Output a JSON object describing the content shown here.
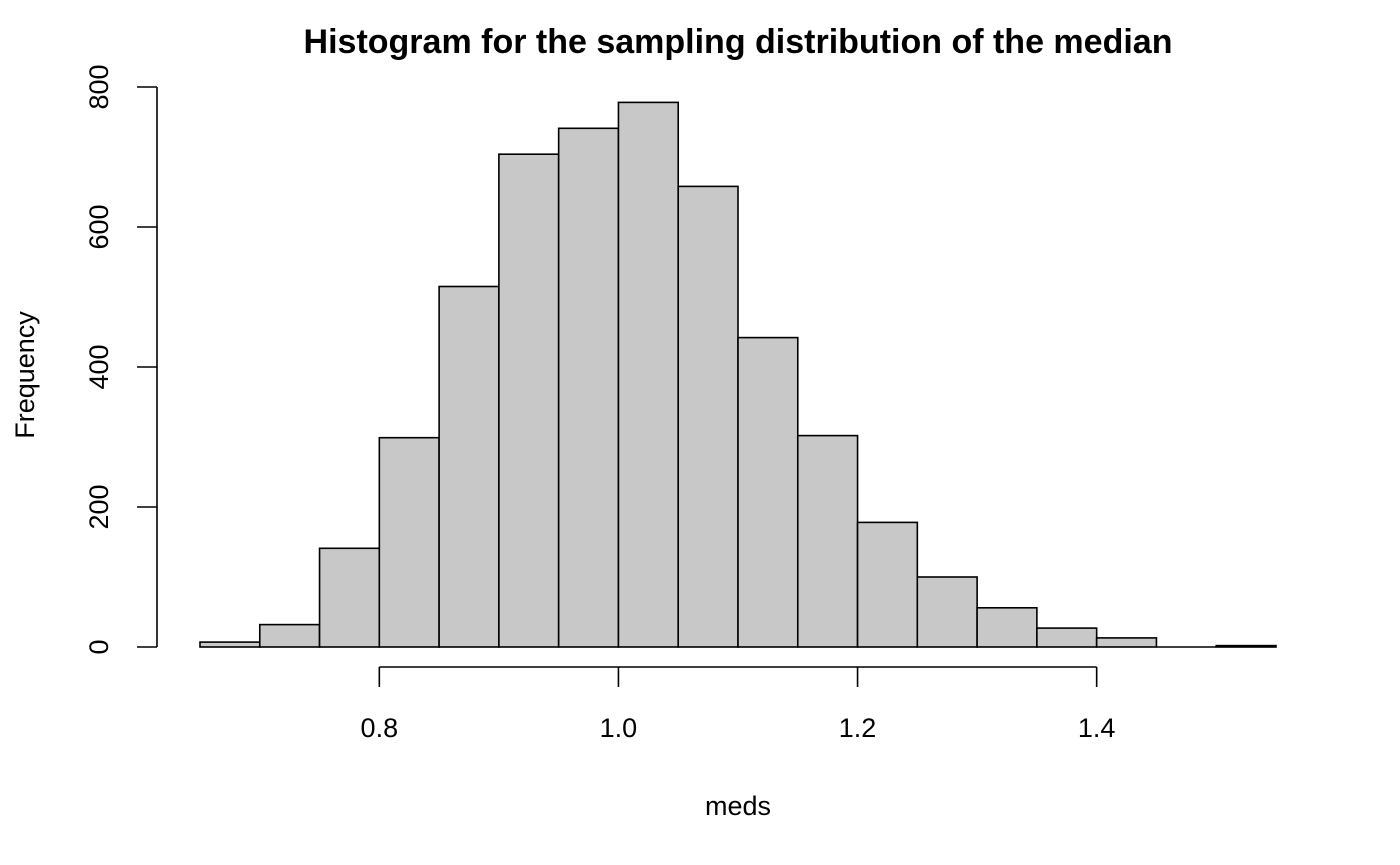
{
  "chart_data": {
    "type": "bar",
    "title": "Histogram for the sampling distribution of the median",
    "xlabel": "meds",
    "ylabel": "Frequency",
    "bin_width": 0.05,
    "bins": [
      {
        "x0": 0.65,
        "x1": 0.7,
        "count": 7
      },
      {
        "x0": 0.7,
        "x1": 0.75,
        "count": 32
      },
      {
        "x0": 0.75,
        "x1": 0.8,
        "count": 141
      },
      {
        "x0": 0.8,
        "x1": 0.85,
        "count": 299
      },
      {
        "x0": 0.85,
        "x1": 0.9,
        "count": 515
      },
      {
        "x0": 0.9,
        "x1": 0.95,
        "count": 704
      },
      {
        "x0": 0.95,
        "x1": 1.0,
        "count": 741
      },
      {
        "x0": 1.0,
        "x1": 1.05,
        "count": 778
      },
      {
        "x0": 1.05,
        "x1": 1.1,
        "count": 658
      },
      {
        "x0": 1.1,
        "x1": 1.15,
        "count": 442
      },
      {
        "x0": 1.15,
        "x1": 1.2,
        "count": 302
      },
      {
        "x0": 1.2,
        "x1": 1.25,
        "count": 178
      },
      {
        "x0": 1.25,
        "x1": 1.3,
        "count": 100
      },
      {
        "x0": 1.3,
        "x1": 1.35,
        "count": 56
      },
      {
        "x0": 1.35,
        "x1": 1.4,
        "count": 27
      },
      {
        "x0": 1.4,
        "x1": 1.45,
        "count": 13
      },
      {
        "x0": 1.45,
        "x1": 1.5,
        "count": 0
      },
      {
        "x0": 1.5,
        "x1": 1.55,
        "count": 2
      }
    ],
    "xticks": [
      0.8,
      1.0,
      1.2,
      1.4
    ],
    "xtick_labels": [
      "0.8",
      "1.0",
      "1.2",
      "1.4"
    ],
    "yticks": [
      0,
      200,
      400,
      600,
      800
    ],
    "ytick_labels": [
      "0",
      "200",
      "400",
      "600",
      "800"
    ],
    "xlim": [
      0.65,
      1.55
    ],
    "ylim": [
      0,
      800
    ],
    "grid": false,
    "legend": "none",
    "bar_color": "#c8c8c8",
    "edge_color": "#000000"
  }
}
